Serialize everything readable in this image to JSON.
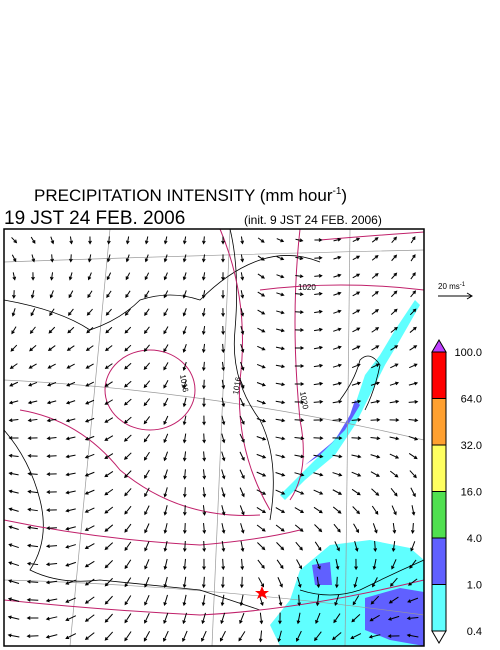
{
  "header": {
    "title": "PRECIPITATION INTENSITY (mm hour",
    "title_sup": "-1",
    "title_end": ")",
    "valid_time": "19 JST 24 FEB. 2006",
    "init_time": "(init. 9 JST 24 FEB. 2006)"
  },
  "vector_scale": {
    "label": "20 ms",
    "sup": "-1"
  },
  "contour_labels": [
    "1020",
    "1016",
    "1016",
    "1020"
  ],
  "colorbar": {
    "labels": [
      "100.0",
      "64.0",
      "32.0",
      "16.0",
      "4.0",
      "1.0",
      "0.4"
    ],
    "colors": [
      "#ff0000",
      "#ffa030",
      "#ffff60",
      "#50e050",
      "#6060ff",
      "#60ffff"
    ],
    "over_color": "#c040ff",
    "under_color": "#ffffff"
  }
}
